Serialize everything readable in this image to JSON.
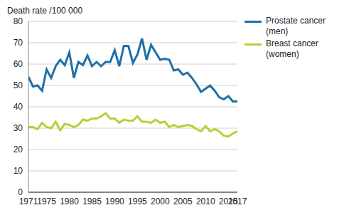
{
  "chart_data": {
    "type": "line",
    "y_label": "Death rate /100 000",
    "x": [
      1971,
      1972,
      1973,
      1974,
      1975,
      1976,
      1977,
      1978,
      1979,
      1980,
      1981,
      1982,
      1983,
      1984,
      1985,
      1986,
      1987,
      1988,
      1989,
      1990,
      1991,
      1992,
      1993,
      1994,
      1995,
      1996,
      1997,
      1998,
      1999,
      2000,
      2001,
      2002,
      2003,
      2004,
      2005,
      2006,
      2007,
      2008,
      2009,
      2010,
      2011,
      2012,
      2013,
      2014,
      2015,
      2016,
      2017
    ],
    "series": [
      {
        "name": "Prostate cancer (men)",
        "color": "#1f6fa8",
        "values": [
          54,
          49.5,
          50,
          47.5,
          57.5,
          53.5,
          59,
          62,
          59.5,
          65.5,
          53.5,
          61,
          59.5,
          64,
          59,
          61,
          59,
          61,
          61,
          66.5,
          59,
          68.5,
          68.5,
          60.5,
          64.5,
          72,
          62,
          69,
          65.5,
          62,
          62.5,
          62,
          57,
          57.5,
          55,
          56,
          53.5,
          50.5,
          47,
          48.5,
          50,
          47.5,
          44.5,
          43.5,
          45,
          42.5,
          42.5
        ]
      },
      {
        "name": "Breast cancer (women)",
        "color": "#b2d235",
        "values": [
          30.5,
          30.5,
          29.5,
          32.5,
          30.5,
          30,
          33,
          29,
          32,
          31.5,
          30.5,
          31.5,
          34,
          33.5,
          34.5,
          34.5,
          35.5,
          37,
          34.5,
          34.5,
          32.5,
          34,
          33.5,
          33.5,
          35.5,
          33,
          33,
          32.5,
          34,
          32.5,
          33,
          30.5,
          31.5,
          30.5,
          31,
          31.5,
          31,
          29.5,
          28.5,
          31,
          28.5,
          29.5,
          28.5,
          26.5,
          26,
          27.5,
          28.5
        ]
      }
    ],
    "xlim": [
      1971,
      2017
    ],
    "xticks": [
      1971,
      1975,
      1980,
      1985,
      1990,
      1995,
      2000,
      2005,
      2010,
      2015,
      2017
    ],
    "ylim": [
      0,
      80
    ],
    "yticks": [
      0,
      10,
      20,
      30,
      40,
      50,
      60,
      70,
      80
    ],
    "grid": true,
    "legend": "top-right"
  }
}
